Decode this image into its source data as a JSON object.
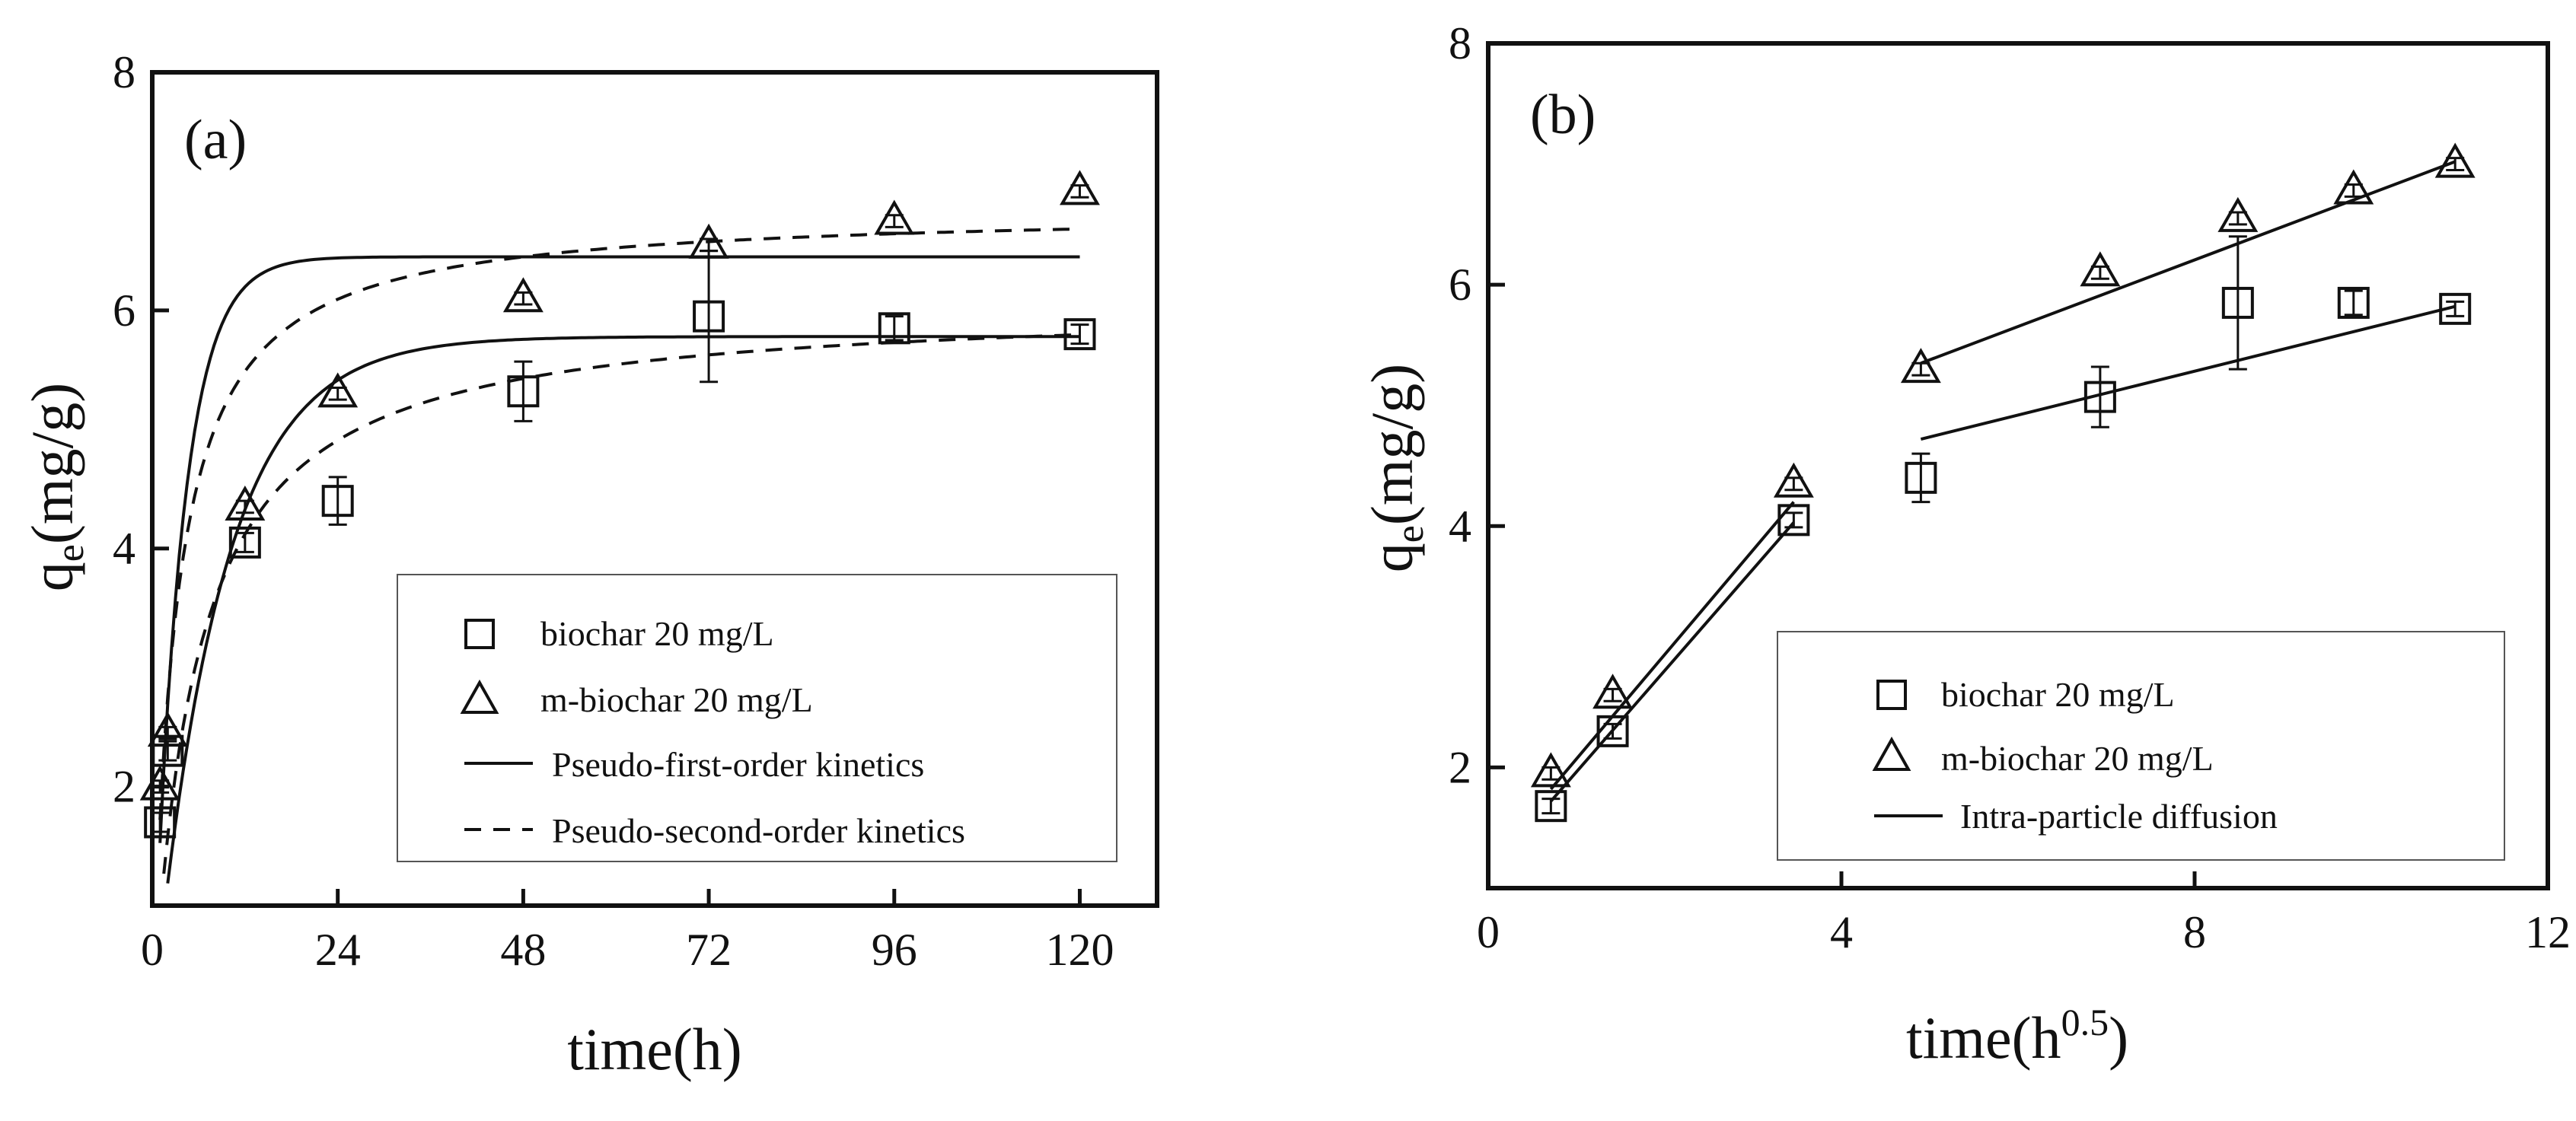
{
  "chart_data": [
    {
      "type": "scatter",
      "panel_label": "(a)",
      "xlabel": "time(h)",
      "ylabel": "q",
      "ylabel_sub": "e",
      "ylabel_rest": "(mg/g)",
      "xlim": [
        0,
        130
      ],
      "ylim": [
        1,
        8
      ],
      "xticks": [
        0,
        24,
        48,
        72,
        96,
        120
      ],
      "yticks": [
        2,
        4,
        6,
        8
      ],
      "legend_position": "bottom-right",
      "series": [
        {
          "name": "biochar 20 mg/L",
          "marker": "square",
          "x": [
            1,
            2,
            12,
            24,
            48,
            72,
            96,
            120
          ],
          "y": [
            1.7,
            2.3,
            4.05,
            4.4,
            5.32,
            5.95,
            5.85,
            5.8
          ],
          "yerr": [
            0.08,
            0.08,
            0.08,
            0.2,
            0.25,
            0.55,
            0.1,
            0.08
          ]
        },
        {
          "name": "m-biochar 20 mg/L",
          "marker": "triangle",
          "x": [
            1,
            2,
            12,
            24,
            48,
            72,
            96,
            120
          ],
          "y": [
            2.0,
            2.45,
            4.35,
            5.3,
            6.1,
            6.55,
            6.75,
            7.0
          ],
          "yerr": [
            0.05,
            0.05,
            0.05,
            0.05,
            0.05,
            0.05,
            0.05,
            0.05
          ]
        }
      ],
      "fits": [
        {
          "name": "Pseudo-first-order kinetics",
          "style": "solid",
          "model": "pfo",
          "qe": 6.45,
          "k": 0.27,
          "of": "m-biochar 20 mg/L"
        },
        {
          "name": "Pseudo-first-order kinetics",
          "style": "solid",
          "model": "pfo",
          "qe": 5.78,
          "k": 0.115,
          "of": "biochar 20 mg/L"
        },
        {
          "name": "Pseudo-second-order kinetics",
          "style": "dashed",
          "model": "pso",
          "qe": 6.85,
          "k": 0.049,
          "of": "m-biochar 20 mg/L"
        },
        {
          "name": "Pseudo-second-order kinetics",
          "style": "dashed",
          "model": "pso",
          "qe": 6.07,
          "k": 0.029,
          "of": "biochar 20 mg/L"
        }
      ],
      "legend": [
        {
          "label": "biochar 20 mg/L",
          "marker": "square"
        },
        {
          "label": "m-biochar 20 mg/L",
          "marker": "triangle"
        },
        {
          "label": "Pseudo-first-order kinetics",
          "line": "solid"
        },
        {
          "label": "Pseudo-second-order kinetics",
          "line": "dashed"
        }
      ]
    },
    {
      "type": "scatter",
      "panel_label": "(b)",
      "xlabel": "time(h",
      "xlabel_sup": "0.5",
      "xlabel_end": ")",
      "ylabel": "q",
      "ylabel_sub": "e",
      "ylabel_rest": "(mg/g)",
      "xlim": [
        0,
        12
      ],
      "ylim": [
        1,
        8
      ],
      "xticks": [
        0,
        4,
        8,
        12
      ],
      "yticks": [
        2,
        4,
        6,
        8
      ],
      "legend_position": "bottom-right",
      "series": [
        {
          "name": "biochar 20 mg/L",
          "marker": "square",
          "x": [
            0.71,
            1.41,
            3.46,
            4.9,
            6.93,
            8.49,
            9.8,
            10.95
          ],
          "y": [
            1.68,
            2.3,
            4.05,
            4.4,
            5.07,
            5.85,
            5.85,
            5.8
          ],
          "yerr": [
            0.06,
            0.06,
            0.06,
            0.2,
            0.25,
            0.55,
            0.1,
            0.06
          ]
        },
        {
          "name": "m-biochar 20 mg/L",
          "marker": "triangle",
          "x": [
            0.71,
            1.41,
            3.46,
            4.9,
            6.93,
            8.49,
            9.8,
            10.95
          ],
          "y": [
            1.95,
            2.6,
            4.35,
            5.3,
            6.1,
            6.55,
            6.78,
            7.0
          ],
          "yerr": [
            0.05,
            0.05,
            0.05,
            0.05,
            0.05,
            0.05,
            0.05,
            0.05
          ]
        }
      ],
      "fits": [
        {
          "name": "Intra-particle diffusion",
          "style": "solid",
          "model": "line",
          "x": [
            0.71,
            3.46
          ],
          "y": [
            1.72,
            4.03
          ],
          "of": "biochar 20 mg/L"
        },
        {
          "name": "Intra-particle diffusion",
          "style": "solid",
          "model": "line",
          "x": [
            0.71,
            3.46
          ],
          "y": [
            1.82,
            4.2
          ],
          "of": "m-biochar 20 mg/L"
        },
        {
          "name": "Intra-particle diffusion",
          "style": "solid",
          "model": "line",
          "x": [
            4.9,
            10.95
          ],
          "y": [
            4.72,
            5.82
          ],
          "of": "biochar 20 mg/L"
        },
        {
          "name": "Intra-particle diffusion",
          "style": "solid",
          "model": "line",
          "x": [
            4.9,
            10.95
          ],
          "y": [
            5.35,
            7.02
          ],
          "of": "m-biochar 20 mg/L"
        }
      ],
      "legend": [
        {
          "label": "biochar 20 mg/L",
          "marker": "square"
        },
        {
          "label": "m-biochar 20 mg/L",
          "marker": "triangle"
        },
        {
          "label": "Intra-particle diffusion",
          "line": "solid"
        }
      ]
    }
  ]
}
